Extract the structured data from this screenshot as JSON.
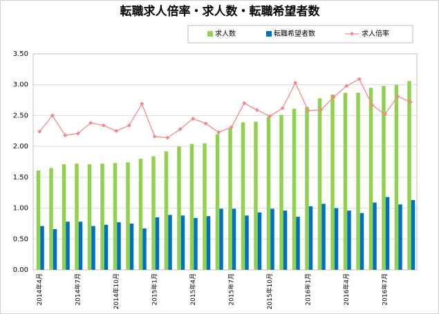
{
  "chart_data": {
    "type": "bar-line",
    "title": "転職求人倍率・求人数・転職希望者数",
    "categories": [
      "2014年4月",
      null,
      null,
      "2014年7月",
      null,
      null,
      "2014年10月",
      null,
      null,
      "2015年1月",
      null,
      null,
      "2015年4月",
      null,
      null,
      "2015年7月",
      null,
      null,
      "2015年10月",
      null,
      null,
      "2016年1月",
      null,
      null,
      "2016年4月",
      null,
      null,
      "2016年7月",
      null,
      null
    ],
    "series": [
      {
        "name": "求人数",
        "color": "#92d050",
        "kind": "bar",
        "values": [
          1.61,
          1.65,
          1.71,
          1.72,
          1.71,
          1.72,
          1.73,
          1.74,
          1.8,
          1.84,
          1.92,
          2.0,
          2.04,
          2.05,
          2.2,
          2.29,
          2.39,
          2.4,
          2.48,
          2.51,
          2.61,
          2.64,
          2.78,
          2.84,
          2.87,
          2.87,
          2.95,
          2.98,
          3.0,
          3.06
        ]
      },
      {
        "name": "転職希望者数",
        "color": "#0070c0",
        "kind": "bar",
        "values": [
          0.71,
          0.66,
          0.78,
          0.78,
          0.71,
          0.73,
          0.77,
          0.75,
          0.67,
          0.85,
          0.89,
          0.88,
          0.84,
          0.87,
          0.99,
          0.99,
          0.88,
          0.93,
          0.99,
          0.96,
          0.86,
          1.03,
          1.07,
          1.0,
          0.96,
          0.92,
          1.09,
          1.18,
          1.06,
          1.13
        ]
      },
      {
        "name": "求人倍率",
        "color": "#f4868a",
        "kind": "line",
        "values": [
          2.24,
          2.5,
          2.18,
          2.21,
          2.38,
          2.34,
          2.25,
          2.34,
          2.69,
          2.16,
          2.14,
          2.28,
          2.45,
          2.37,
          2.23,
          2.31,
          2.7,
          2.59,
          2.49,
          2.62,
          3.03,
          2.58,
          2.59,
          2.8,
          2.98,
          3.09,
          2.67,
          2.52,
          2.81,
          2.72
        ]
      }
    ],
    "ylim": [
      0,
      3.5
    ],
    "yticks": [
      {
        "value": 0,
        "label": "0.00"
      },
      {
        "value": 0.5,
        "label": "0.50"
      },
      {
        "value": 1,
        "label": "1.00"
      },
      {
        "value": 1.5,
        "label": "1.50"
      },
      {
        "value": 2,
        "label": "2.00"
      },
      {
        "value": 2.5,
        "label": "2.50"
      },
      {
        "value": 3,
        "label": "3.00"
      },
      {
        "value": 3.5,
        "label": "3.50"
      }
    ],
    "grid": true,
    "legend": "top"
  }
}
